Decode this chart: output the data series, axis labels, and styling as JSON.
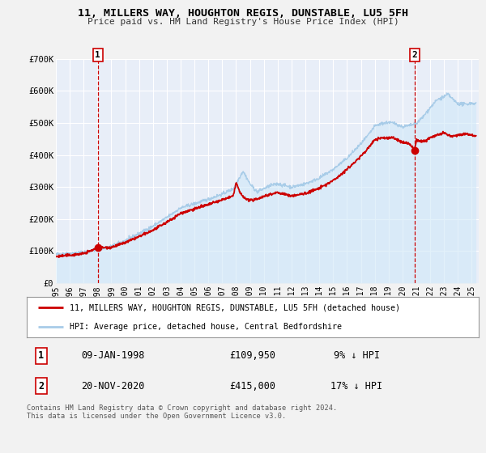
{
  "title": "11, MILLERS WAY, HOUGHTON REGIS, DUNSTABLE, LU5 5FH",
  "subtitle": "Price paid vs. HM Land Registry's House Price Index (HPI)",
  "hpi_label": "HPI: Average price, detached house, Central Bedfordshire",
  "property_label": "11, MILLERS WAY, HOUGHTON REGIS, DUNSTABLE, LU5 5FH (detached house)",
  "property_color": "#cc0000",
  "hpi_color": "#a8cce8",
  "hpi_fill_color": "#d0e8f8",
  "background_color": "#f2f2f2",
  "plot_bg_color": "#e8eef8",
  "grid_color": "#ffffff",
  "sale1_price": 109950,
  "sale1_vline_x": 1998.03,
  "sale2_price": 415000,
  "sale2_vline_x": 2020.89,
  "sale1_info": "09-JAN-1998",
  "sale1_amount": "£109,950",
  "sale1_hpi": "9% ↓ HPI",
  "sale2_info": "20-NOV-2020",
  "sale2_amount": "£415,000",
  "sale2_hpi": "17% ↓ HPI",
  "ylim_min": 0,
  "ylim_max": 700000,
  "xlim_min": 1995.0,
  "xlim_max": 2025.5,
  "footer": "Contains HM Land Registry data © Crown copyright and database right 2024.\nThis data is licensed under the Open Government Licence v3.0.",
  "yticks": [
    0,
    100000,
    200000,
    300000,
    400000,
    500000,
    600000,
    700000
  ],
  "ytick_labels": [
    "£0",
    "£100K",
    "£200K",
    "£300K",
    "£400K",
    "£500K",
    "£600K",
    "£700K"
  ],
  "xticks": [
    1995,
    1996,
    1997,
    1998,
    1999,
    2000,
    2001,
    2002,
    2003,
    2004,
    2005,
    2006,
    2007,
    2008,
    2009,
    2010,
    2011,
    2012,
    2013,
    2014,
    2015,
    2016,
    2017,
    2018,
    2019,
    2020,
    2021,
    2022,
    2023,
    2024,
    2025
  ]
}
